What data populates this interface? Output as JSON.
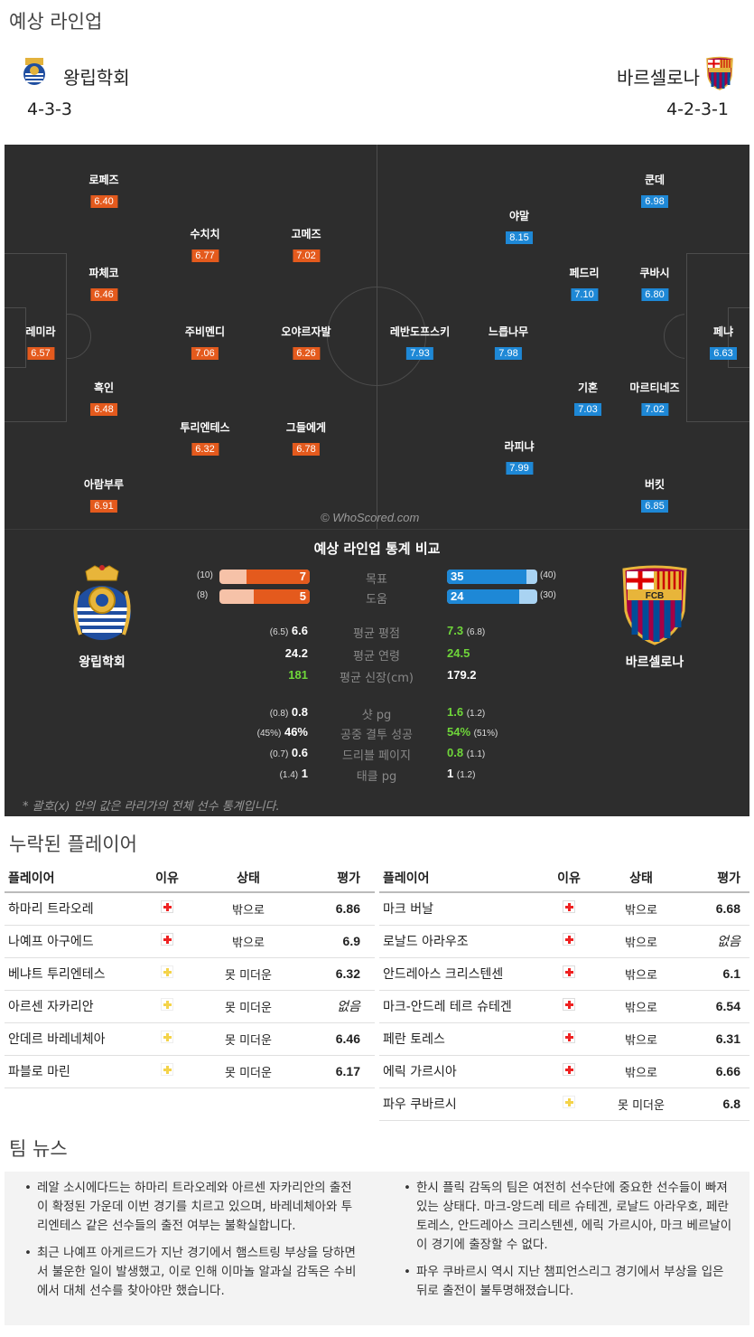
{
  "header": {
    "title": "예상 라인업",
    "home": {
      "name": "왕립학회",
      "formation": "4-3-3"
    },
    "away": {
      "name": "바르셀로나",
      "formation": "4-2-3-1"
    }
  },
  "pitch": {
    "watermark": "© WhoScored.com",
    "home_players": [
      {
        "name": "로페즈",
        "rating": "6.40"
      },
      {
        "name": "수치치",
        "rating": "6.77"
      },
      {
        "name": "고메즈",
        "rating": "7.02"
      },
      {
        "name": "파체코",
        "rating": "6.46"
      },
      {
        "name": "레미라",
        "rating": "6.57"
      },
      {
        "name": "주비멘디",
        "rating": "7.06"
      },
      {
        "name": "오야르자발",
        "rating": "6.26"
      },
      {
        "name": "흑인",
        "rating": "6.48"
      },
      {
        "name": "투리엔테스",
        "rating": "6.32"
      },
      {
        "name": "그들에게",
        "rating": "6.78"
      },
      {
        "name": "아람부루",
        "rating": "6.91"
      }
    ],
    "away_players": [
      {
        "name": "쿤데",
        "rating": "6.98"
      },
      {
        "name": "야말",
        "rating": "8.15"
      },
      {
        "name": "페드리",
        "rating": "7.10"
      },
      {
        "name": "쿠바시",
        "rating": "6.80"
      },
      {
        "name": "레반도프스키",
        "rating": "7.93"
      },
      {
        "name": "느릅나무",
        "rating": "7.98"
      },
      {
        "name": "페냐",
        "rating": "6.63"
      },
      {
        "name": "기혼",
        "rating": "7.03"
      },
      {
        "name": "마르티네즈",
        "rating": "7.02"
      },
      {
        "name": "라피냐",
        "rating": "7.99"
      },
      {
        "name": "버킷",
        "rating": "6.85"
      }
    ]
  },
  "stats": {
    "title": "예상 라인업 통계 비교",
    "home_name": "왕립학회",
    "away_name": "바르셀로나",
    "bars": [
      {
        "label": "목표",
        "home": "7",
        "home_par": "(10)",
        "away": "35",
        "away_par": "(40)",
        "home_frac": 0.7,
        "away_frac": 0.875
      },
      {
        "label": "도움",
        "home": "5",
        "home_par": "(8)",
        "away": "24",
        "away_par": "(30)",
        "home_frac": 0.625,
        "away_frac": 0.8
      }
    ],
    "rows1": [
      {
        "label": "평균 평점",
        "home": "6.6",
        "home_par": "(6.5)",
        "away": "7.3",
        "away_par": "(6.8)",
        "better": "away"
      },
      {
        "label": "평균 연령",
        "home": "24.2",
        "home_par": "",
        "away": "24.5",
        "away_par": "",
        "better": "away"
      },
      {
        "label": "평균 신장(cm)",
        "home": "181",
        "home_par": "",
        "away": "179.2",
        "away_par": "",
        "better": "home"
      }
    ],
    "rows2": [
      {
        "label": "샷 pg",
        "home": "0.8",
        "home_par": "(0.8)",
        "away": "1.6",
        "away_par": "(1.2)",
        "better": "away"
      },
      {
        "label": "공중 결투 성공",
        "home": "46%",
        "home_par": "(45%)",
        "away": "54%",
        "away_par": "(51%)",
        "better": "away"
      },
      {
        "label": "드리블 페이지",
        "home": "0.6",
        "home_par": "(0.7)",
        "away": "0.8",
        "away_par": "(1.1)",
        "better": "away"
      },
      {
        "label": "태클 pg",
        "home": "1",
        "home_par": "(1.4)",
        "away": "1",
        "away_par": "(1.2)",
        "better": "none"
      }
    ],
    "note": "* 괄호(x) 안의 값은 라리가의 전체 선수 통계입니다."
  },
  "missing": {
    "title": "누락된 플레이어",
    "headers": [
      "플레이어",
      "이유",
      "상태",
      "평가"
    ],
    "home": [
      {
        "player": "하마리 트라오레",
        "reason": "injury",
        "status": "밖으로",
        "rating": "6.86"
      },
      {
        "player": "나예프 아구에드",
        "reason": "injury",
        "status": "밖으로",
        "rating": "6.9"
      },
      {
        "player": "베냐트 투리엔테스",
        "reason": "doubt",
        "status": "못 미더운",
        "rating": "6.32"
      },
      {
        "player": "아르센 자카리안",
        "reason": "doubt",
        "status": "못 미더운",
        "rating": "없음"
      },
      {
        "player": "안데르 바레네체아",
        "reason": "doubt",
        "status": "못 미더운",
        "rating": "6.46"
      },
      {
        "player": "파블로 마린",
        "reason": "doubt",
        "status": "못 미더운",
        "rating": "6.17"
      }
    ],
    "away": [
      {
        "player": "마크 버날",
        "reason": "injury",
        "status": "밖으로",
        "rating": "6.68"
      },
      {
        "player": "로날드 아라우조",
        "reason": "injury",
        "status": "밖으로",
        "rating": "없음"
      },
      {
        "player": "안드레아스 크리스텐센",
        "reason": "injury",
        "status": "밖으로",
        "rating": "6.1"
      },
      {
        "player": "마크-안드레 테르 슈테겐",
        "reason": "injury",
        "status": "밖으로",
        "rating": "6.54"
      },
      {
        "player": "페란 토레스",
        "reason": "injury",
        "status": "밖으로",
        "rating": "6.31"
      },
      {
        "player": "에릭 가르시아",
        "reason": "injury",
        "status": "밖으로",
        "rating": "6.66"
      },
      {
        "player": "파우 쿠바르시",
        "reason": "doubt",
        "status": "못 미더운",
        "rating": "6.8"
      }
    ]
  },
  "news": {
    "title": "팀 뉴스",
    "home": [
      "레알 소시에다드는 하마리 트라오레와 아르센 자카리안의 출전이 확정된 가운데 이번 경기를 치르고 있으며, 바레네체아와 투리엔테스 같은 선수들의 출전 여부는 불확실합니다.",
      "최근 나예프 아게르드가 지난 경기에서 햄스트링 부상을 당하면서 불운한 일이 발생했고, 이로 인해 이마놀 알과실 감독은 수비에서 대체 선수를 찾아야만 했습니다."
    ],
    "away": [
      "한시 플릭 감독의 팀은 여전히 선수단에 중요한 선수들이 빠져 있는 상태다. 마크-앙드레 테르 슈테겐, 로날드 아라우호, 페란 토레스, 안드레아스 크리스텐센, 에릭 가르시아, 마크 베르날이 이 경기에 출장할 수 없다.",
      "파우 쿠바르시 역시 지난 챔피언스리그 경기에서 부상을 입은 뒤로 출전이 불투명해졌습니다."
    ]
  }
}
